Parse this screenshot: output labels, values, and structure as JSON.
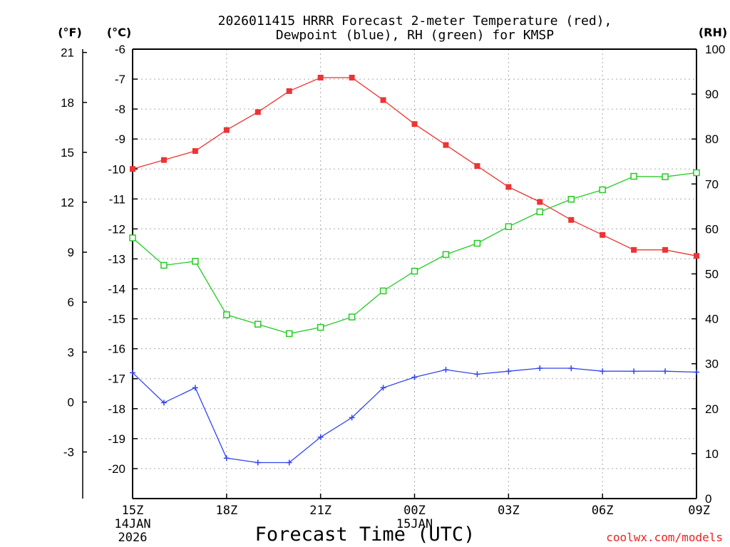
{
  "chart_data": {
    "type": "line",
    "title_line1": "2026011415 HRRR Forecast 2-meter Temperature (red),",
    "title_line2": "Dewpoint (blue), RH (green) for KMSP",
    "xlabel": "Forecast Time (UTC)",
    "credit": "coolwx.com/models",
    "units": {
      "left_f": "(°F)",
      "left_c": "(°C)",
      "right": "(RH)"
    },
    "x_hours": [
      0,
      1,
      2,
      3,
      4,
      5,
      6,
      7,
      8,
      9,
      10,
      11,
      12,
      13,
      14,
      15,
      16,
      17,
      18
    ],
    "x_ticks": [
      {
        "hour": 0,
        "label": "15Z",
        "date1": "14JAN",
        "date2": "2026"
      },
      {
        "hour": 3,
        "label": "18Z"
      },
      {
        "hour": 6,
        "label": "21Z"
      },
      {
        "hour": 9,
        "label": "00Z",
        "date1": "15JAN"
      },
      {
        "hour": 12,
        "label": "03Z"
      },
      {
        "hour": 15,
        "label": "06Z"
      },
      {
        "hour": 18,
        "label": "09Z"
      }
    ],
    "celsius_axis": {
      "range": [
        -21,
        -6
      ],
      "ticks": [
        -6,
        -7,
        -8,
        -9,
        -10,
        -11,
        -12,
        -13,
        -14,
        -15,
        -16,
        -17,
        -18,
        -19,
        -20
      ]
    },
    "fahrenheit_axis": {
      "ticks": [
        21,
        18,
        15,
        12,
        9,
        6,
        3,
        0,
        -3
      ]
    },
    "rh_axis": {
      "range": [
        0,
        100
      ],
      "ticks": [
        0,
        10,
        20,
        30,
        40,
        50,
        60,
        70,
        80,
        90,
        100
      ]
    },
    "series": [
      {
        "name": "Temperature",
        "unit": "C",
        "color": "#ee3333",
        "marker": "filled-square",
        "values": [
          -10.0,
          -9.7,
          -9.4,
          -8.7,
          -8.1,
          -7.4,
          -6.95,
          -6.95,
          -7.7,
          -8.5,
          -9.2,
          -9.9,
          -10.6,
          -11.1,
          -11.7,
          -12.2,
          -12.7,
          -12.7,
          -12.9
        ]
      },
      {
        "name": "Dewpoint",
        "unit": "C",
        "color": "#3344ee",
        "marker": "plus",
        "values": [
          -16.8,
          -17.8,
          -17.3,
          -19.65,
          -19.8,
          -19.8,
          -18.95,
          -18.3,
          -17.3,
          -16.95,
          -16.7,
          -16.85,
          -16.75,
          -16.65,
          -16.65,
          -16.75,
          -16.75,
          -16.75,
          -16.78
        ]
      },
      {
        "name": "RH",
        "unit": "%",
        "color": "#22cc22",
        "marker": "open-square",
        "values": [
          58.0,
          51.9,
          52.8,
          40.9,
          38.8,
          36.7,
          38.1,
          40.4,
          46.2,
          50.6,
          54.3,
          56.8,
          60.5,
          63.8,
          66.6,
          68.7,
          71.7,
          71.6,
          72.5
        ]
      }
    ]
  }
}
